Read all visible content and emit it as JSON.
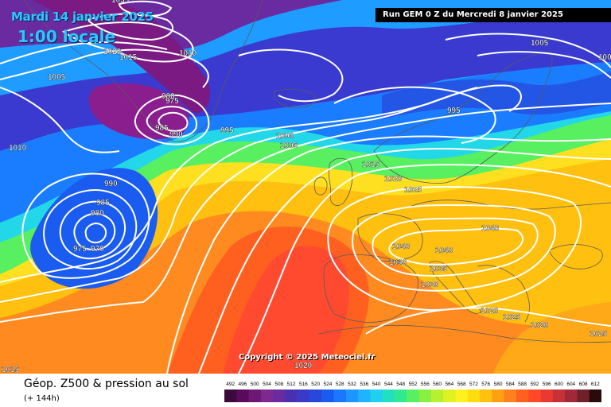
{
  "header": {
    "date": "Mardi 14 janvier 2025",
    "time": "1:00 locale",
    "run": "Run GEM 0 Z du Mercredi 8 janvier 2025"
  },
  "copyright": "Copyright © 2025 Meteociel.fr",
  "footer": {
    "title": "Géop. Z500 & pression au sol",
    "subtitle": "(+ 144h)"
  },
  "scale": {
    "values": [
      "492",
      "496",
      "500",
      "504",
      "508",
      "512",
      "516",
      "520",
      "524",
      "528",
      "532",
      "536",
      "540",
      "544",
      "548",
      "552",
      "556",
      "560",
      "564",
      "568",
      "572",
      "576",
      "580",
      "584",
      "588",
      "592",
      "596",
      "600",
      "604",
      "608",
      "612"
    ],
    "colors": [
      "#3a0a3a",
      "#5a0a5a",
      "#6e1874",
      "#7e2890",
      "#6a2aa0",
      "#4a30b0",
      "#3a3ac8",
      "#2848dc",
      "#1a5cf0",
      "#1a78ff",
      "#1e96ff",
      "#1eb4ff",
      "#20d0f0",
      "#20e0c0",
      "#30e890",
      "#58f060",
      "#88f040",
      "#b8f030",
      "#e0f020",
      "#fff020",
      "#ffdc10",
      "#ffc010",
      "#ffa010",
      "#ff8020",
      "#ff6020",
      "#ff4828",
      "#e83a30",
      "#c83038",
      "#a02838",
      "#702028",
      "#2a0a0a"
    ]
  },
  "pressure_labels": [
    "1035",
    "1020",
    "1015",
    "1010",
    "1005",
    "980",
    "975",
    "985",
    "990",
    "995",
    "1000",
    "1015",
    "1020",
    "1025",
    "1040",
    "1040",
    "1040",
    "1040",
    "1035",
    "1030",
    "1020",
    "1025",
    "1020",
    "1025",
    "990",
    "985",
    "980",
    "975",
    "970",
    "1010",
    "1005",
    "1005",
    "1000",
    "1015",
    "1020",
    "995"
  ]
}
